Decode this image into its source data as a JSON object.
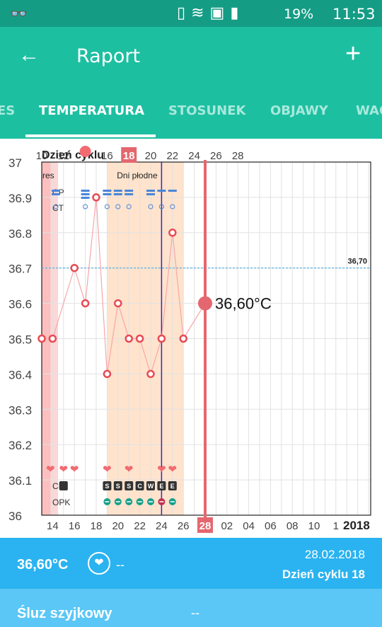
{
  "status": {
    "battery": "19%",
    "time": "11:53"
  },
  "appbar": {
    "title": "Raport"
  },
  "tabs": [
    {
      "label": "ES"
    },
    {
      "label": "TEMPERATURA"
    },
    {
      "label": "STOSUNEK"
    },
    {
      "label": "OBJAWY"
    },
    {
      "label": "WAG"
    }
  ],
  "chart_data": {
    "type": "line",
    "top_axis_label": "Dzień cyklu",
    "cycle_days": [
      10,
      12,
      14,
      16,
      18,
      20,
      22,
      24,
      26,
      28
    ],
    "current_cycle_day": "18",
    "dates": [
      "14",
      "16",
      "18",
      "20",
      "22",
      "24",
      "26",
      "28",
      "02",
      "04",
      "06",
      "08",
      "10",
      "1"
    ],
    "current_date": "28",
    "year": "2018",
    "yticks": [
      "37",
      "36.9",
      "36.8",
      "36.7",
      "36.6",
      "36.5",
      "36.4",
      "36.3",
      "36.2",
      "36.1",
      "36"
    ],
    "ylim": [
      36.0,
      37.0
    ],
    "series": [
      {
        "x": [
          13,
          14,
          16,
          17,
          18,
          19,
          20,
          21,
          22,
          23,
          24,
          25,
          26,
          28
        ],
        "y": [
          36.5,
          36.5,
          36.7,
          36.6,
          36.9,
          36.4,
          36.6,
          36.5,
          36.5,
          36.4,
          36.5,
          36.8,
          36.5,
          36.6
        ]
      }
    ],
    "reference_line": {
      "value": 36.7,
      "label": "36,70"
    },
    "current_value_label": "36,60°C",
    "fertile_label": "Dni płodne",
    "period_label": "res",
    "row_labels": {
      "cp": "CP",
      "ct": "CT",
      "ci": "CI",
      "opk": "OPK"
    },
    "ci_codes": [
      "S",
      "S",
      "S",
      "C",
      "W",
      "E",
      "E"
    ],
    "grid": true
  },
  "summary": {
    "temperature": "36,60°C",
    "heart_value": "--",
    "date": "28.02.2018",
    "cycle_day": "Dzień cyklu 18"
  },
  "mucus": {
    "label": "Śluz szyjkowy",
    "value": "--"
  }
}
